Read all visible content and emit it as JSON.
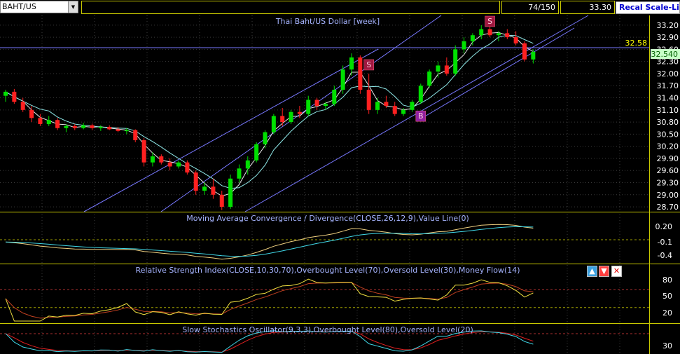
{
  "toolbar": {
    "symbol": "BAHT/US",
    "count": "74/150",
    "price": "33.30",
    "recal_label": "Recal Scale-Line"
  },
  "price_panel": {
    "title": "Thai Baht/US Dollar [week]",
    "y_ticks": [
      "33.20",
      "32.90",
      "32.60",
      "32.30",
      "32.00",
      "31.70",
      "31.40",
      "31.10",
      "30.80",
      "30.50",
      "30.20",
      "29.90",
      "29.60",
      "29.30",
      "29.00",
      "28.70"
    ],
    "hline_value": 32.58,
    "hline_label": "32.58",
    "last_label": "32.540",
    "signals": [
      {
        "index": 42,
        "label": "S"
      },
      {
        "index": 48,
        "label": "B"
      },
      {
        "index": 56,
        "label": "S"
      }
    ]
  },
  "macd_panel": {
    "title": "Moving Average Convergence / Divergence(CLOSE,26,12,9),Value Line(0)",
    "y_ticks": [
      "0.20",
      "-0.1",
      "-0.4"
    ]
  },
  "rsi_panel": {
    "title": "Relative Strength Index(CLOSE,10,30,70),Overbought Level(70),Oversold Level(30),Money Flow(14)",
    "y_ticks": [
      "80",
      "50",
      "20"
    ]
  },
  "stoch_panel": {
    "title": "Slow Stochastics Oscillator(9,3,3),Overbought Level(80),Oversold Level(20)",
    "y_ticks": [
      "30"
    ]
  },
  "colors": {
    "up": "#00e000",
    "down": "#ff2020",
    "grid": "#3a3a3a",
    "channel": "#7878ff",
    "panel_border": "#c8c800",
    "signal_s": "#a01840",
    "signal_b": "#9020a0"
  },
  "chart_data": {
    "type": "candlestick",
    "y_range": [
      28.58,
      33.44
    ],
    "candles": [
      {
        "o": 31.45,
        "h": 31.6,
        "l": 31.3,
        "c": 31.55
      },
      {
        "o": 31.55,
        "h": 31.62,
        "l": 31.25,
        "c": 31.3
      },
      {
        "o": 31.3,
        "h": 31.4,
        "l": 31.05,
        "c": 31.1
      },
      {
        "o": 31.1,
        "h": 31.2,
        "l": 30.8,
        "c": 30.9
      },
      {
        "o": 30.9,
        "h": 31.0,
        "l": 30.7,
        "c": 30.75
      },
      {
        "o": 30.75,
        "h": 30.95,
        "l": 30.7,
        "c": 30.85
      },
      {
        "o": 30.85,
        "h": 30.9,
        "l": 30.6,
        "c": 30.65
      },
      {
        "o": 30.65,
        "h": 30.75,
        "l": 30.55,
        "c": 30.7
      },
      {
        "o": 30.7,
        "h": 30.75,
        "l": 30.6,
        "c": 30.65
      },
      {
        "o": 30.65,
        "h": 30.78,
        "l": 30.62,
        "c": 30.72
      },
      {
        "o": 30.72,
        "h": 30.76,
        "l": 30.6,
        "c": 30.65
      },
      {
        "o": 30.65,
        "h": 30.72,
        "l": 30.58,
        "c": 30.68
      },
      {
        "o": 30.68,
        "h": 30.72,
        "l": 30.6,
        "c": 30.62
      },
      {
        "o": 30.62,
        "h": 30.68,
        "l": 30.55,
        "c": 30.58
      },
      {
        "o": 30.58,
        "h": 30.65,
        "l": 30.5,
        "c": 30.6
      },
      {
        "o": 30.6,
        "h": 30.62,
        "l": 30.3,
        "c": 30.35
      },
      {
        "o": 30.35,
        "h": 30.4,
        "l": 29.7,
        "c": 29.8
      },
      {
        "o": 29.8,
        "h": 30.05,
        "l": 29.7,
        "c": 29.95
      },
      {
        "o": 29.95,
        "h": 30.0,
        "l": 29.75,
        "c": 29.8
      },
      {
        "o": 29.8,
        "h": 29.9,
        "l": 29.6,
        "c": 29.7
      },
      {
        "o": 29.7,
        "h": 29.85,
        "l": 29.65,
        "c": 29.8
      },
      {
        "o": 29.8,
        "h": 29.85,
        "l": 29.5,
        "c": 29.55
      },
      {
        "o": 29.55,
        "h": 29.6,
        "l": 29.0,
        "c": 29.1
      },
      {
        "o": 29.1,
        "h": 29.3,
        "l": 29.0,
        "c": 29.2
      },
      {
        "o": 29.2,
        "h": 29.4,
        "l": 28.9,
        "c": 29.0
      },
      {
        "o": 29.0,
        "h": 29.1,
        "l": 28.62,
        "c": 28.7
      },
      {
        "o": 28.7,
        "h": 29.5,
        "l": 28.65,
        "c": 29.4
      },
      {
        "o": 29.4,
        "h": 29.75,
        "l": 29.3,
        "c": 29.65
      },
      {
        "o": 29.65,
        "h": 29.95,
        "l": 29.5,
        "c": 29.85
      },
      {
        "o": 29.85,
        "h": 30.3,
        "l": 29.8,
        "c": 30.25
      },
      {
        "o": 30.25,
        "h": 30.6,
        "l": 30.15,
        "c": 30.55
      },
      {
        "o": 30.55,
        "h": 31.0,
        "l": 30.5,
        "c": 30.95
      },
      {
        "o": 30.95,
        "h": 31.15,
        "l": 30.7,
        "c": 30.8
      },
      {
        "o": 30.8,
        "h": 31.1,
        "l": 30.75,
        "c": 31.05
      },
      {
        "o": 31.05,
        "h": 31.2,
        "l": 30.9,
        "c": 31.0
      },
      {
        "o": 31.0,
        "h": 31.45,
        "l": 30.95,
        "c": 31.35
      },
      {
        "o": 31.35,
        "h": 31.4,
        "l": 31.1,
        "c": 31.2
      },
      {
        "o": 31.2,
        "h": 31.3,
        "l": 31.1,
        "c": 31.25
      },
      {
        "o": 31.25,
        "h": 31.7,
        "l": 31.2,
        "c": 31.6
      },
      {
        "o": 31.6,
        "h": 32.2,
        "l": 31.5,
        "c": 32.1
      },
      {
        "o": 32.1,
        "h": 32.5,
        "l": 31.95,
        "c": 32.4
      },
      {
        "o": 32.4,
        "h": 32.45,
        "l": 31.5,
        "c": 31.6
      },
      {
        "o": 31.6,
        "h": 32.0,
        "l": 31.0,
        "c": 31.1
      },
      {
        "o": 31.1,
        "h": 31.4,
        "l": 31.0,
        "c": 31.3
      },
      {
        "o": 31.3,
        "h": 31.45,
        "l": 31.15,
        "c": 31.2
      },
      {
        "o": 31.2,
        "h": 31.3,
        "l": 30.95,
        "c": 31.0
      },
      {
        "o": 31.0,
        "h": 31.15,
        "l": 30.95,
        "c": 31.1
      },
      {
        "o": 31.1,
        "h": 31.35,
        "l": 31.05,
        "c": 31.3
      },
      {
        "o": 31.3,
        "h": 31.75,
        "l": 31.25,
        "c": 31.7
      },
      {
        "o": 31.7,
        "h": 32.1,
        "l": 31.65,
        "c": 32.05
      },
      {
        "o": 32.05,
        "h": 32.3,
        "l": 31.9,
        "c": 32.2
      },
      {
        "o": 32.2,
        "h": 32.4,
        "l": 31.95,
        "c": 32.0
      },
      {
        "o": 32.0,
        "h": 32.7,
        "l": 31.95,
        "c": 32.6
      },
      {
        "o": 32.6,
        "h": 32.9,
        "l": 32.5,
        "c": 32.8
      },
      {
        "o": 32.8,
        "h": 33.0,
        "l": 32.7,
        "c": 32.95
      },
      {
        "o": 32.95,
        "h": 33.2,
        "l": 32.85,
        "c": 33.1
      },
      {
        "o": 33.1,
        "h": 33.25,
        "l": 32.9,
        "c": 32.95
      },
      {
        "o": 32.95,
        "h": 33.05,
        "l": 32.8,
        "c": 33.0
      },
      {
        "o": 33.0,
        "h": 33.1,
        "l": 32.85,
        "c": 32.9
      },
      {
        "o": 32.9,
        "h": 33.05,
        "l": 32.7,
        "c": 32.75
      },
      {
        "o": 32.75,
        "h": 32.8,
        "l": 32.3,
        "c": 32.35
      },
      {
        "o": 32.35,
        "h": 32.6,
        "l": 32.25,
        "c": 32.54
      }
    ]
  }
}
